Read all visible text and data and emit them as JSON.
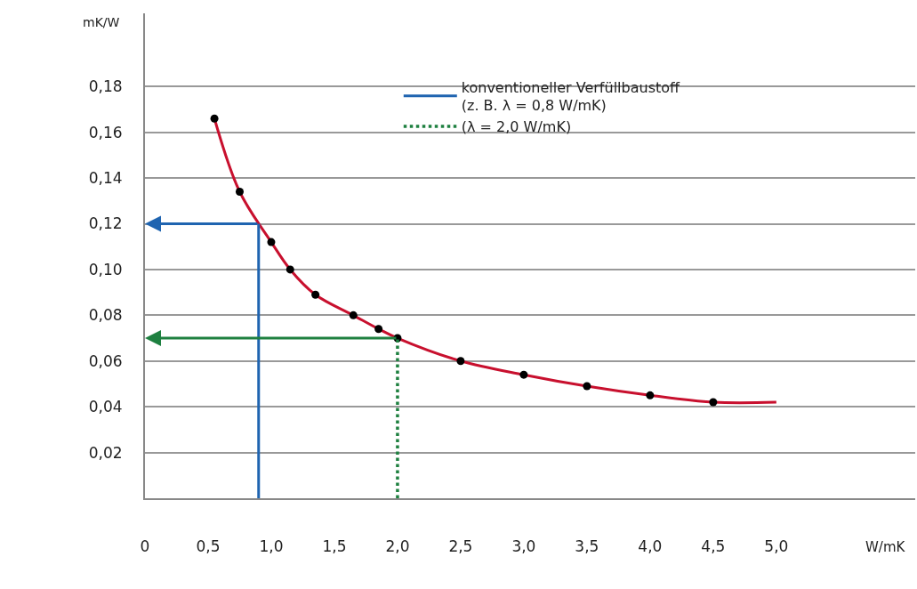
{
  "chart_data": {
    "type": "line",
    "xlabel": "W/mK",
    "ylabel": "mK/W",
    "series": [
      {
        "color": "#c8102e",
        "marker": "none",
        "x": [
          0.55,
          0.75,
          1.0,
          1.15,
          1.35,
          1.65,
          1.85,
          2.0,
          2.5,
          3.0,
          3.5,
          4.0,
          4.5,
          5.0
        ],
        "values": [
          0.166,
          0.134,
          0.112,
          0.1,
          0.089,
          0.08,
          0.074,
          0.07,
          0.06,
          0.054,
          0.049,
          0.045,
          0.042,
          0.042
        ]
      },
      {
        "type": "scatter",
        "color": "#000000",
        "marker": "circle",
        "x": [
          0.55,
          0.75,
          1.0,
          1.15,
          1.35,
          1.65,
          1.85,
          2.0,
          2.5,
          3.0,
          3.5,
          4.0,
          4.5
        ],
        "values": [
          0.166,
          0.134,
          0.112,
          0.1,
          0.089,
          0.08,
          0.074,
          0.07,
          0.06,
          0.054,
          0.049,
          0.045,
          0.042
        ]
      },
      {
        "type": "line",
        "name": "konventioneller Verfüllbaustoff\n(z. B. λ = 0,8 W/mK)",
        "color": "#1f64b0",
        "line_style": "solid",
        "marker": "none",
        "x": [
          0.9,
          0.9
        ],
        "values": [
          0,
          0.12
        ]
      },
      {
        "type": "line",
        "name": "(λ = 2,0 W/mK)",
        "color": "#1e8040",
        "line_style": "dotted",
        "marker": "none",
        "x": [
          2.0,
          2.0
        ],
        "values": [
          0,
          0.07
        ]
      }
    ],
    "xlim": [
      0,
      6.1
    ],
    "ylim": [
      0,
      0.212
    ],
    "xticks": [
      0,
      {
        "value": 0.5,
        "label": "0,5"
      },
      {
        "value": 1.0,
        "label": "1,0"
      },
      {
        "value": 1.5,
        "label": "1,5"
      },
      {
        "value": 2.0,
        "label": "2,0"
      },
      {
        "value": 2.5,
        "label": "2,5"
      },
      {
        "value": 3.0,
        "label": "3,0"
      },
      {
        "value": 3.5,
        "label": "3,5"
      },
      {
        "value": 4.0,
        "label": "4,0"
      },
      {
        "value": 4.5,
        "label": "4,5"
      },
      {
        "value": 5.0,
        "label": "5,0"
      }
    ],
    "yticks": [
      {
        "value": 0.02,
        "label": "0,02"
      },
      {
        "value": 0.04,
        "label": "0,04"
      },
      {
        "value": 0.06,
        "label": "0,06"
      },
      {
        "value": 0.08,
        "label": "0,08"
      },
      {
        "value": 0.1,
        "label": "0,10"
      },
      {
        "value": 0.12,
        "label": "0,12"
      },
      {
        "value": 0.14,
        "label": "0,14"
      },
      {
        "value": 0.16,
        "label": "0,16"
      },
      {
        "value": 0.18,
        "label": "0,18"
      }
    ],
    "grid": "y",
    "legend": "top right"
  }
}
